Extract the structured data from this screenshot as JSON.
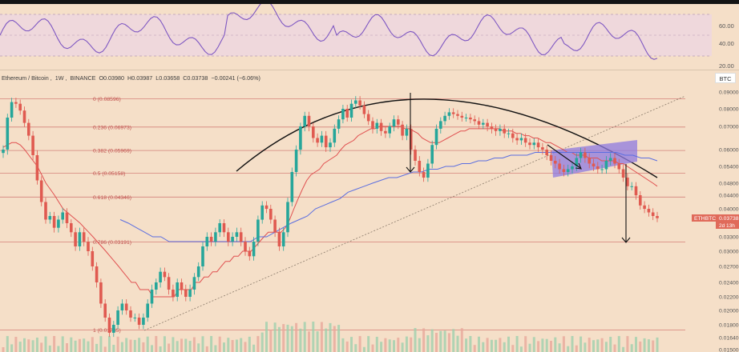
{
  "header": {
    "symbol": "Ethereum / Bitcoin",
    "interval": "1W",
    "exchange": "BINANCE",
    "open": "O0.03980",
    "high": "H0.03987",
    "low": "L0.03658",
    "close": "C0.03738",
    "change": "−0.00241 (−6.06%)"
  },
  "currency": "BTC",
  "ticker": {
    "symbol": "ETHBTC",
    "price": "0.03738",
    "countdown": "2d 13h"
  },
  "rsi": {
    "labels": [
      "60.00",
      "40.00",
      "20.00"
    ]
  },
  "fib": [
    {
      "label": "0 (0.08596)",
      "value": 0.08596
    },
    {
      "label": "0.236 (0.06973)",
      "value": 0.06973
    },
    {
      "label": "0.382 (0.05969)",
      "value": 0.05969
    },
    {
      "label": "0.5 (0.05158)",
      "value": 0.05158
    },
    {
      "label": "0.618 (0.04346)",
      "value": 0.04346
    },
    {
      "label": "0.786 (0.03191)",
      "value": 0.03191
    },
    {
      "label": "1 (0.01735)",
      "value": 0.01735
    }
  ],
  "chart_data": {
    "type": "line",
    "title": "",
    "xlabel": "",
    "ylabel": "",
    "ylim": [
      0.015,
      0.092
    ],
    "y_ticks": [
      "0.09000",
      "0.08000",
      "0.07000",
      "0.06000",
      "0.05400",
      "0.04800",
      "0.04400",
      "0.04000",
      "0.03600",
      "0.03300",
      "0.03000",
      "0.02700",
      "0.02400",
      "0.02200",
      "0.02000",
      "0.01800",
      "0.01640",
      "0.01500"
    ],
    "series": [
      {
        "values": [
          0.06,
          0.075,
          0.084,
          0.083,
          0.079,
          0.072,
          0.066,
          0.058,
          0.049,
          0.042,
          0.037,
          0.038,
          0.035,
          0.037,
          0.039,
          0.036,
          0.034,
          0.031,
          0.034,
          0.032,
          0.03,
          0.027,
          0.024,
          0.021,
          0.019,
          0.017,
          0.018,
          0.02,
          0.021,
          0.02,
          0.019,
          0.019,
          0.018,
          0.019,
          0.021,
          0.023,
          0.024,
          0.026,
          0.025,
          0.023,
          0.022,
          0.024,
          0.023,
          0.022,
          0.023,
          0.025,
          0.027,
          0.031,
          0.033,
          0.032,
          0.034,
          0.036,
          0.034,
          0.032,
          0.033,
          0.034,
          0.032,
          0.03,
          0.029,
          0.032,
          0.037,
          0.041,
          0.04,
          0.037,
          0.034,
          0.031,
          0.034,
          0.042,
          0.052,
          0.06,
          0.07,
          0.076,
          0.07,
          0.065,
          0.063,
          0.066,
          0.061,
          0.063,
          0.069,
          0.074,
          0.08,
          0.075,
          0.083,
          0.085,
          0.082,
          0.077,
          0.073,
          0.069,
          0.072,
          0.068,
          0.067,
          0.07,
          0.074,
          0.071,
          0.066,
          0.069,
          0.06,
          0.056,
          0.052,
          0.05,
          0.055,
          0.062,
          0.069,
          0.073,
          0.076,
          0.078,
          0.077,
          0.076,
          0.075,
          0.075,
          0.074,
          0.073,
          0.071,
          0.072,
          0.07,
          0.069,
          0.068,
          0.069,
          0.067,
          0.067,
          0.065,
          0.064,
          0.065,
          0.063,
          0.062,
          0.063,
          0.061,
          0.06,
          0.058,
          0.056,
          0.055,
          0.053,
          0.052,
          0.053,
          0.054,
          0.057,
          0.059,
          0.057,
          0.055,
          0.054,
          0.053,
          0.053,
          0.056,
          0.057,
          0.055,
          0.053,
          0.05,
          0.047,
          0.047,
          0.044,
          0.041,
          0.04,
          0.039,
          0.038,
          0.0374
        ]
      },
      {
        "values": [
          0.061,
          0.062,
          0.063,
          0.063,
          0.062,
          0.06,
          0.058,
          0.056,
          0.054,
          0.051,
          0.048,
          0.046,
          0.044,
          0.042,
          0.04,
          0.039,
          0.038,
          0.037,
          0.036,
          0.035,
          0.034,
          0.033,
          0.032,
          0.031,
          0.03,
          0.029,
          0.028,
          0.027,
          0.026,
          0.025,
          0.024,
          0.024,
          0.023,
          0.023,
          0.023,
          0.022,
          0.022,
          0.022,
          0.022,
          0.022,
          0.022,
          0.023,
          0.023,
          0.023,
          0.023,
          0.024,
          0.024,
          0.025,
          0.025,
          0.026,
          0.026,
          0.027,
          0.028,
          0.028,
          0.029,
          0.029,
          0.03,
          0.03,
          0.03,
          0.031,
          0.032,
          0.033,
          0.034,
          0.034,
          0.034,
          0.034,
          0.035,
          0.037,
          0.04,
          0.043,
          0.046,
          0.049,
          0.051,
          0.052,
          0.053,
          0.055,
          0.056,
          0.057,
          0.058,
          0.06,
          0.062,
          0.063,
          0.064,
          0.066,
          0.067,
          0.068,
          0.069,
          0.069,
          0.07,
          0.07,
          0.07,
          0.07,
          0.07,
          0.07,
          0.069,
          0.069,
          0.068,
          0.067,
          0.065,
          0.064,
          0.063,
          0.063,
          0.063,
          0.064,
          0.065,
          0.066,
          0.067,
          0.068,
          0.068,
          0.069,
          0.069,
          0.069,
          0.069,
          0.069,
          0.069,
          0.069,
          0.069,
          0.068,
          0.068,
          0.068,
          0.067,
          0.067,
          0.066,
          0.066,
          0.065,
          0.065,
          0.064,
          0.063,
          0.063,
          0.062,
          0.061,
          0.06,
          0.059,
          0.059,
          0.058,
          0.058,
          0.058,
          0.057,
          0.057,
          0.057,
          0.056,
          0.056,
          0.056,
          0.056,
          0.055,
          0.055,
          0.054,
          0.053,
          0.052,
          0.051,
          0.05,
          0.049,
          0.048,
          0.047
        ]
      },
      {
        "values": [
          0.037,
          0.036,
          0.035,
          0.034,
          0.033,
          0.033,
          0.032,
          0.032,
          0.032,
          0.032,
          0.032,
          0.032,
          0.032,
          0.032,
          0.032,
          0.032,
          0.032,
          0.033,
          0.033,
          0.034,
          0.035,
          0.036,
          0.037,
          0.038,
          0.04,
          0.041,
          0.042,
          0.043,
          0.045,
          0.046,
          0.047,
          0.048,
          0.049,
          0.05,
          0.05,
          0.051,
          0.052,
          0.052,
          0.053,
          0.053,
          0.054,
          0.054,
          0.055,
          0.055,
          0.056,
          0.056,
          0.057,
          0.057,
          0.058,
          0.058,
          0.058,
          0.059,
          0.059,
          0.059,
          0.059,
          0.059,
          0.059,
          0.059,
          0.059,
          0.059,
          0.059,
          0.059,
          0.058,
          0.058,
          0.057,
          0.057,
          0.056
        ]
      }
    ],
    "legend": "none",
    "grid": false
  }
}
